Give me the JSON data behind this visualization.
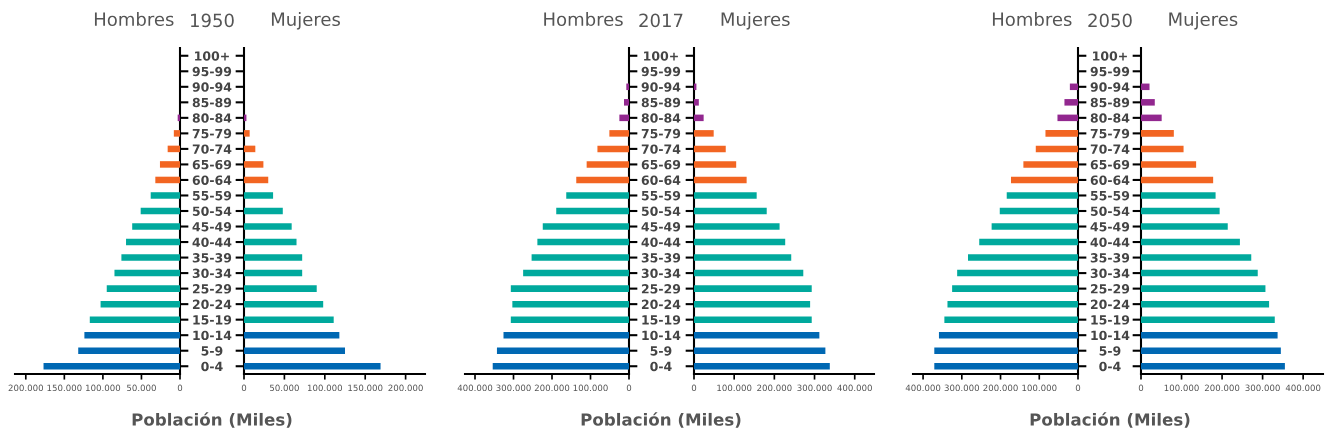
{
  "chart_data": [
    {
      "type": "bar",
      "orientation": "horizontal",
      "title": "Hombres",
      "annotations": [
        "1950"
      ],
      "xlabel": "Población (Miles)",
      "categories": [
        "100+",
        "95-99",
        "90-94",
        "85-89",
        "80-84",
        "75-79",
        "70-74",
        "65-69",
        "60-64",
        "55-59",
        "50-54",
        "45-49",
        "40-44",
        "35-39",
        "30-34",
        "25-29",
        "20-24",
        "15-19",
        "10-14",
        "5-9",
        "0-4"
      ],
      "values": [
        0,
        0,
        0,
        0,
        3000,
        8000,
        16000,
        26000,
        32000,
        38000,
        51000,
        62000,
        70000,
        76000,
        85000,
        95000,
        103000,
        117000,
        124000,
        132000,
        177000
      ],
      "colors": [
        "#92278f",
        "#92278f",
        "#92278f",
        "#92278f",
        "#92278f",
        "#f26522",
        "#f26522",
        "#f26522",
        "#f26522",
        "#00a99d",
        "#00a99d",
        "#00a99d",
        "#00a99d",
        "#00a99d",
        "#00a99d",
        "#00a99d",
        "#00a99d",
        "#00a99d",
        "#0068b3",
        "#0068b3",
        "#0068b3"
      ],
      "xlim": [
        214000,
        0
      ],
      "xticks": [
        {
          "value": 200000,
          "label": "200.000"
        },
        {
          "value": 150000,
          "label": "150.000"
        },
        {
          "value": 100000,
          "label": "100.000"
        },
        {
          "value": 50000,
          "label": "50.000"
        },
        0
      ]
    },
    {
      "type": "bar",
      "orientation": "horizontal",
      "title": "Mujeres",
      "tick_labels": "x",
      "categories": [
        null,
        null,
        null,
        null,
        null,
        null,
        null,
        null,
        null,
        null,
        null,
        null,
        null,
        null,
        null,
        null,
        null,
        null,
        null,
        null,
        null
      ],
      "values": [
        0,
        0,
        0,
        0,
        3000,
        7000,
        14000,
        24000,
        30000,
        36000,
        48000,
        59000,
        65000,
        72000,
        72000,
        90000,
        98000,
        111000,
        118000,
        125000,
        169000
      ],
      "colors": [
        "#92278f",
        "#92278f",
        "#92278f",
        "#92278f",
        "#92278f",
        "#f26522",
        "#f26522",
        "#f26522",
        "#f26522",
        "#00a99d",
        "#00a99d",
        "#00a99d",
        "#00a99d",
        "#00a99d",
        "#00a99d",
        "#00a99d",
        "#00a99d",
        "#00a99d",
        "#0068b3",
        "#0068b3",
        "#0068b3"
      ],
      "xlim": [
        0,
        224000
      ],
      "xticks": [
        0,
        {
          "value": 50000,
          "label": "50.000"
        },
        {
          "value": 100000,
          "label": "100.000"
        },
        {
          "value": 150000,
          "label": "150.000"
        },
        {
          "value": 200000,
          "label": "200.000"
        }
      ]
    },
    {
      "type": "bar",
      "orientation": "horizontal",
      "title": "Hombres",
      "annotations": [
        "2017"
      ],
      "xlabel": "Población (Miles)",
      "categories": [
        "100+",
        "95-99",
        "90-94",
        "85-89",
        "80-84",
        "75-79",
        "70-74",
        "65-69",
        "60-64",
        "55-59",
        "50-54",
        "45-49",
        "40-44",
        "35-39",
        "30-34",
        "25-29",
        "20-24",
        "15-19",
        "10-14",
        "5-9",
        "0-4"
      ],
      "values": [
        0,
        0,
        7000,
        13000,
        25000,
        51000,
        82000,
        110000,
        137000,
        163000,
        189000,
        224000,
        238000,
        253000,
        275000,
        307000,
        303000,
        307000,
        326000,
        343000,
        354000
      ],
      "colors": [
        "#92278f",
        "#92278f",
        "#92278f",
        "#92278f",
        "#92278f",
        "#f26522",
        "#f26522",
        "#f26522",
        "#f26522",
        "#00a99d",
        "#00a99d",
        "#00a99d",
        "#00a99d",
        "#00a99d",
        "#00a99d",
        "#00a99d",
        "#00a99d",
        "#00a99d",
        "#0068b3",
        "#0068b3",
        "#0068b3"
      ],
      "xlim": [
        426000,
        0
      ],
      "xticks": [
        {
          "value": 400000,
          "label": "400.000"
        },
        {
          "value": 300000,
          "label": "300.000"
        },
        {
          "value": 200000,
          "label": "200.000"
        },
        {
          "value": 100000,
          "label": "100.000"
        },
        0
      ]
    },
    {
      "type": "bar",
      "orientation": "horizontal",
      "title": "Mujeres",
      "tick_labels": "x",
      "categories": [
        null,
        null,
        null,
        null,
        null,
        null,
        null,
        null,
        null,
        null,
        null,
        null,
        null,
        null,
        null,
        null,
        null,
        null,
        null,
        null,
        null
      ],
      "values": [
        0,
        0,
        6000,
        12000,
        24000,
        49000,
        79000,
        105000,
        131000,
        156000,
        181000,
        213000,
        227000,
        242000,
        272000,
        293000,
        289000,
        293000,
        312000,
        327000,
        338000
      ],
      "colors": [
        "#92278f",
        "#92278f",
        "#92278f",
        "#92278f",
        "#92278f",
        "#f26522",
        "#f26522",
        "#f26522",
        "#f26522",
        "#00a99d",
        "#00a99d",
        "#00a99d",
        "#00a99d",
        "#00a99d",
        "#00a99d",
        "#00a99d",
        "#00a99d",
        "#00a99d",
        "#0068b3",
        "#0068b3",
        "#0068b3"
      ],
      "xlim": [
        0,
        448000
      ],
      "xticks": [
        0,
        {
          "value": 100000,
          "label": "100.000"
        },
        {
          "value": 200000,
          "label": "200.000"
        },
        {
          "value": 300000,
          "label": "300.000"
        },
        {
          "value": 400000,
          "label": "400.000"
        }
      ]
    },
    {
      "type": "bar",
      "orientation": "horizontal",
      "title": "Hombres",
      "annotations": [
        "2050"
      ],
      "xlabel": "Población (Miles)",
      "categories": [
        "100+",
        "95-99",
        "90-94",
        "85-89",
        "80-84",
        "75-79",
        "70-74",
        "65-69",
        "60-64",
        "55-59",
        "50-54",
        "45-49",
        "40-44",
        "35-39",
        "30-34",
        "25-29",
        "20-24",
        "15-19",
        "10-14",
        "5-9",
        "0-4"
      ],
      "values": [
        0,
        0,
        21000,
        35000,
        53000,
        84000,
        109000,
        141000,
        173000,
        184000,
        202000,
        223000,
        255000,
        284000,
        312000,
        325000,
        337000,
        345000,
        359000,
        371000,
        371000
      ],
      "colors": [
        "#92278f",
        "#92278f",
        "#92278f",
        "#92278f",
        "#92278f",
        "#f26522",
        "#f26522",
        "#f26522",
        "#f26522",
        "#00a99d",
        "#00a99d",
        "#00a99d",
        "#00a99d",
        "#00a99d",
        "#00a99d",
        "#00a99d",
        "#00a99d",
        "#00a99d",
        "#0068b3",
        "#0068b3",
        "#0068b3"
      ],
      "xlim": [
        426000,
        0
      ],
      "xticks": [
        {
          "value": 400000,
          "label": "400.000"
        },
        {
          "value": 300000,
          "label": "300.000"
        },
        {
          "value": 200000,
          "label": "200.000"
        },
        {
          "value": 100000,
          "label": "100.000"
        },
        0
      ]
    },
    {
      "type": "bar",
      "orientation": "horizontal",
      "title": "Mujeres",
      "tick_labels": "x",
      "categories": [
        null,
        null,
        null,
        null,
        null,
        null,
        null,
        null,
        null,
        null,
        null,
        null,
        null,
        null,
        null,
        null,
        null,
        null,
        null,
        null,
        null
      ],
      "values": [
        0,
        0,
        21000,
        34000,
        51000,
        81000,
        105000,
        136000,
        178000,
        184000,
        194000,
        214000,
        244000,
        272000,
        288000,
        307000,
        316000,
        330000,
        337000,
        345000,
        355000
      ],
      "colors": [
        "#92278f",
        "#92278f",
        "#92278f",
        "#92278f",
        "#92278f",
        "#f26522",
        "#f26522",
        "#f26522",
        "#f26522",
        "#00a99d",
        "#00a99d",
        "#00a99d",
        "#00a99d",
        "#00a99d",
        "#00a99d",
        "#00a99d",
        "#00a99d",
        "#00a99d",
        "#0068b3",
        "#0068b3",
        "#0068b3"
      ],
      "xlim": [
        0,
        449000
      ],
      "xticks": [
        0,
        {
          "value": 100000,
          "label": "100.000"
        },
        {
          "value": 200000,
          "label": "200.000"
        },
        {
          "value": 300000,
          "label": "300.000"
        },
        {
          "value": 400000,
          "label": "400.000"
        }
      ]
    }
  ]
}
